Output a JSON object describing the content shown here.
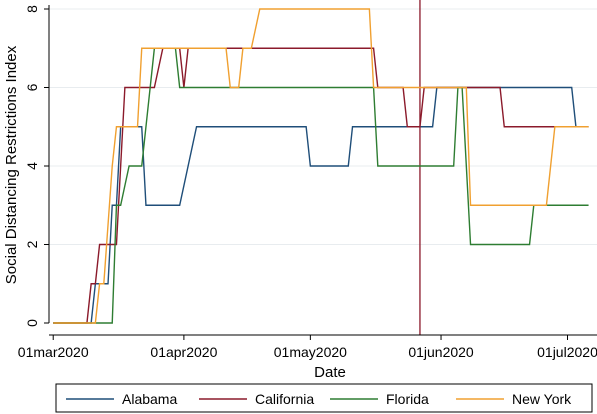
{
  "chart_data": {
    "type": "line",
    "xlabel": "Date",
    "ylabel": "Social Distancing Restrictions Index",
    "x_range": [
      "2020-02-29",
      "2020-07-08"
    ],
    "ylim": [
      0,
      8
    ],
    "y_ticks": [
      0,
      2,
      4,
      6,
      8
    ],
    "x_ticks": [
      {
        "date": "2020-03-01",
        "label": "01mar2020"
      },
      {
        "date": "2020-04-01",
        "label": "01apr2020"
      },
      {
        "date": "2020-05-01",
        "label": "01may2020"
      },
      {
        "date": "2020-06-01",
        "label": "01jun2020"
      },
      {
        "date": "2020-07-01",
        "label": "01jul2020"
      }
    ],
    "grid": true,
    "legend_position": "bottom",
    "reference_line": {
      "date": "2020-05-27",
      "color": "#8b1a2b"
    },
    "series": [
      {
        "name": "Alabama",
        "color": "#1f4e79",
        "points": [
          [
            "2020-03-01",
            0
          ],
          [
            "2020-03-10",
            0
          ],
          [
            "2020-03-11",
            1
          ],
          [
            "2020-03-14",
            1
          ],
          [
            "2020-03-15",
            3
          ],
          [
            "2020-03-16",
            3
          ],
          [
            "2020-03-17",
            5
          ],
          [
            "2020-03-22",
            5
          ],
          [
            "2020-03-23",
            3
          ],
          [
            "2020-03-31",
            3
          ],
          [
            "2020-04-04",
            5
          ],
          [
            "2020-04-30",
            5
          ],
          [
            "2020-05-01",
            4
          ],
          [
            "2020-05-10",
            4
          ],
          [
            "2020-05-11",
            5
          ],
          [
            "2020-05-30",
            5
          ],
          [
            "2020-05-31",
            6
          ],
          [
            "2020-07-02",
            6
          ],
          [
            "2020-07-03",
            5
          ],
          [
            "2020-07-06",
            5
          ]
        ]
      },
      {
        "name": "California",
        "color": "#8b1a2b",
        "points": [
          [
            "2020-03-01",
            0
          ],
          [
            "2020-03-09",
            0
          ],
          [
            "2020-03-10",
            1
          ],
          [
            "2020-03-11",
            1
          ],
          [
            "2020-03-12",
            2
          ],
          [
            "2020-03-16",
            2
          ],
          [
            "2020-03-18",
            6
          ],
          [
            "2020-03-25",
            6
          ],
          [
            "2020-03-27",
            7
          ],
          [
            "2020-03-31",
            7
          ],
          [
            "2020-04-01",
            6
          ],
          [
            "2020-04-02",
            7
          ],
          [
            "2020-05-16",
            7
          ],
          [
            "2020-05-17",
            6
          ],
          [
            "2020-05-23",
            6
          ],
          [
            "2020-05-24",
            5
          ],
          [
            "2020-05-27",
            5
          ],
          [
            "2020-05-28",
            6
          ],
          [
            "2020-06-15",
            6
          ],
          [
            "2020-06-16",
            5
          ],
          [
            "2020-07-06",
            5
          ]
        ]
      },
      {
        "name": "Florida",
        "color": "#2e7d32",
        "points": [
          [
            "2020-03-01",
            0
          ],
          [
            "2020-03-15",
            0
          ],
          [
            "2020-03-16",
            3
          ],
          [
            "2020-03-17",
            3
          ],
          [
            "2020-03-19",
            4
          ],
          [
            "2020-03-22",
            4
          ],
          [
            "2020-03-25",
            7
          ],
          [
            "2020-03-30",
            7
          ],
          [
            "2020-03-31",
            6
          ],
          [
            "2020-05-16",
            6
          ],
          [
            "2020-05-17",
            4
          ],
          [
            "2020-06-04",
            4
          ],
          [
            "2020-06-05",
            6
          ],
          [
            "2020-06-06",
            6
          ],
          [
            "2020-06-08",
            2
          ],
          [
            "2020-06-22",
            2
          ],
          [
            "2020-06-23",
            3
          ],
          [
            "2020-07-06",
            3
          ]
        ]
      },
      {
        "name": "New York",
        "color": "#f0a030",
        "points": [
          [
            "2020-03-01",
            0
          ],
          [
            "2020-03-11",
            0
          ],
          [
            "2020-03-12",
            1
          ],
          [
            "2020-03-13",
            1
          ],
          [
            "2020-03-15",
            4
          ],
          [
            "2020-03-16",
            5
          ],
          [
            "2020-03-21",
            5
          ],
          [
            "2020-03-22",
            7
          ],
          [
            "2020-04-11",
            7
          ],
          [
            "2020-04-12",
            6
          ],
          [
            "2020-04-14",
            6
          ],
          [
            "2020-04-15",
            7
          ],
          [
            "2020-04-17",
            7
          ],
          [
            "2020-04-19",
            8
          ],
          [
            "2020-05-15",
            8
          ],
          [
            "2020-05-16",
            6
          ],
          [
            "2020-06-07",
            6
          ],
          [
            "2020-06-08",
            3
          ],
          [
            "2020-06-26",
            3
          ],
          [
            "2020-06-28",
            5
          ],
          [
            "2020-07-06",
            5
          ]
        ]
      }
    ]
  }
}
